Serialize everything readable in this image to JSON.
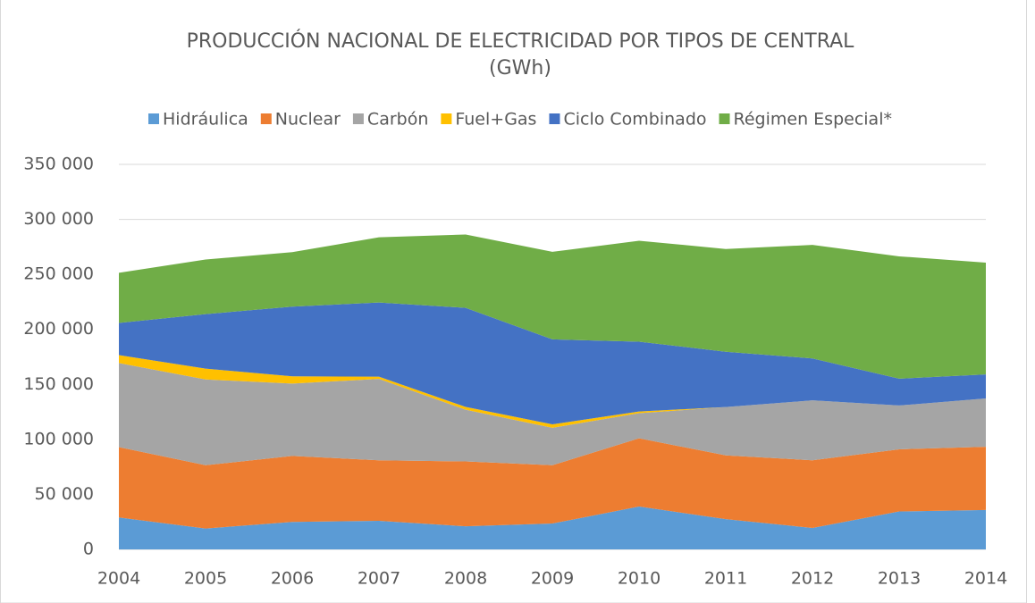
{
  "chart_data": {
    "type": "stacked_area",
    "title": "PRODUCCIÓN NACIONAL DE ELECTRICIDAD POR TIPOS DE CENTRAL",
    "subtitle": "(GWh)",
    "categories": [
      "2004",
      "2005",
      "2006",
      "2007",
      "2008",
      "2009",
      "2010",
      "2011",
      "2012",
      "2013",
      "2014"
    ],
    "series": [
      {
        "name": "Hidráulica",
        "color": "#5b9bd5",
        "values": [
          29000,
          19000,
          25000,
          26000,
          21000,
          23500,
          39000,
          27500,
          19500,
          34500,
          35800
        ]
      },
      {
        "name": "Nuclear",
        "color": "#ed7d31",
        "values": [
          64000,
          57500,
          60000,
          55000,
          59000,
          53000,
          62000,
          58000,
          61500,
          56500,
          57500
        ]
      },
      {
        "name": "Carbón",
        "color": "#a5a5a5",
        "values": [
          76400,
          78000,
          65700,
          74000,
          47000,
          34000,
          22800,
          43900,
          54500,
          39800,
          43900
        ]
      },
      {
        "name": "Fuel+Gas",
        "color": "#ffc000",
        "values": [
          7200,
          9800,
          6600,
          2000,
          2500,
          3200,
          1600,
          0,
          0,
          0,
          0
        ]
      },
      {
        "name": "Ciclo Combinado",
        "color": "#4472c4",
        "values": [
          29300,
          49600,
          63400,
          67400,
          90100,
          77200,
          63400,
          50300,
          38100,
          24400,
          21900
        ]
      },
      {
        "name": "Régimen Especial*",
        "color": "#70ad47",
        "values": [
          45500,
          49600,
          49500,
          59300,
          66700,
          79600,
          91800,
          93400,
          103200,
          111200,
          101600
        ]
      }
    ],
    "ylim": [
      0,
      350000
    ],
    "yticks": [
      0,
      {
        "value": 50000,
        "label": "50 000"
      },
      {
        "value": 100000,
        "label": "100 000"
      },
      {
        "value": 150000,
        "label": "150 000"
      },
      {
        "value": 200000,
        "label": "200 000"
      },
      {
        "value": 250000,
        "label": "250 000"
      },
      {
        "value": 300000,
        "label": "300 000"
      },
      {
        "value": 350000,
        "label": "350 000"
      }
    ],
    "grid": true,
    "legend": "top"
  }
}
